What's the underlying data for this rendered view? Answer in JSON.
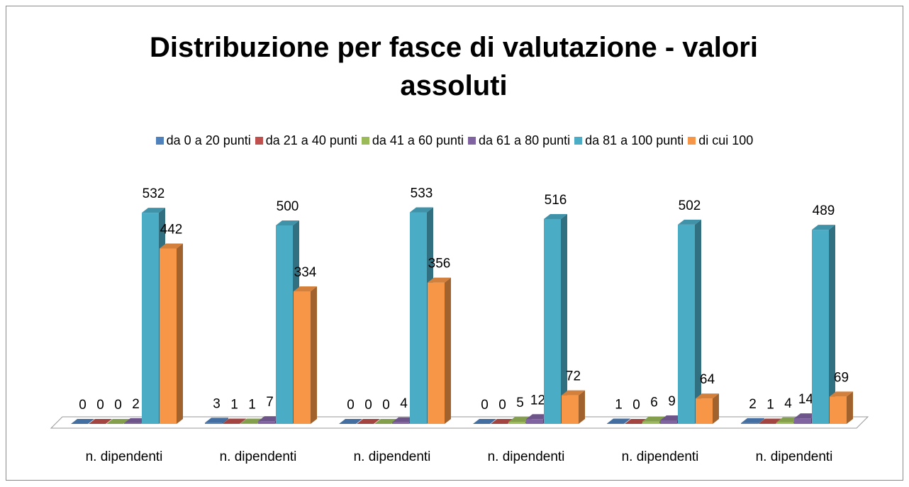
{
  "chart_data": {
    "type": "bar3d",
    "title": "Distribuzione per fasce di valutazione - valori assoluti",
    "categories": [
      "n. dipendenti",
      "n. dipendenti",
      "n. dipendenti",
      "n. dipendenti",
      "n. dipendenti",
      "n. dipendenti"
    ],
    "series": [
      {
        "name": "da 0 a 20 punti",
        "color": "#4f81bd",
        "values": [
          0,
          3,
          0,
          0,
          1,
          2
        ]
      },
      {
        "name": "da 21 a 40 punti",
        "color": "#c0504d",
        "values": [
          0,
          1,
          0,
          0,
          0,
          1
        ]
      },
      {
        "name": "da 41 a 60 punti",
        "color": "#9bbb59",
        "values": [
          0,
          1,
          0,
          5,
          6,
          4
        ]
      },
      {
        "name": "da 61 a 80 punti",
        "color": "#8064a2",
        "values": [
          2,
          7,
          4,
          12,
          9,
          14
        ]
      },
      {
        "name": "da 81 a 100 punti",
        "color": "#4bacc6",
        "values": [
          532,
          500,
          533,
          516,
          502,
          489
        ]
      },
      {
        "name": "di cui 100",
        "color": "#f79646",
        "values": [
          442,
          334,
          356,
          72,
          64,
          69
        ]
      }
    ],
    "legend": "top",
    "grid": false
  }
}
